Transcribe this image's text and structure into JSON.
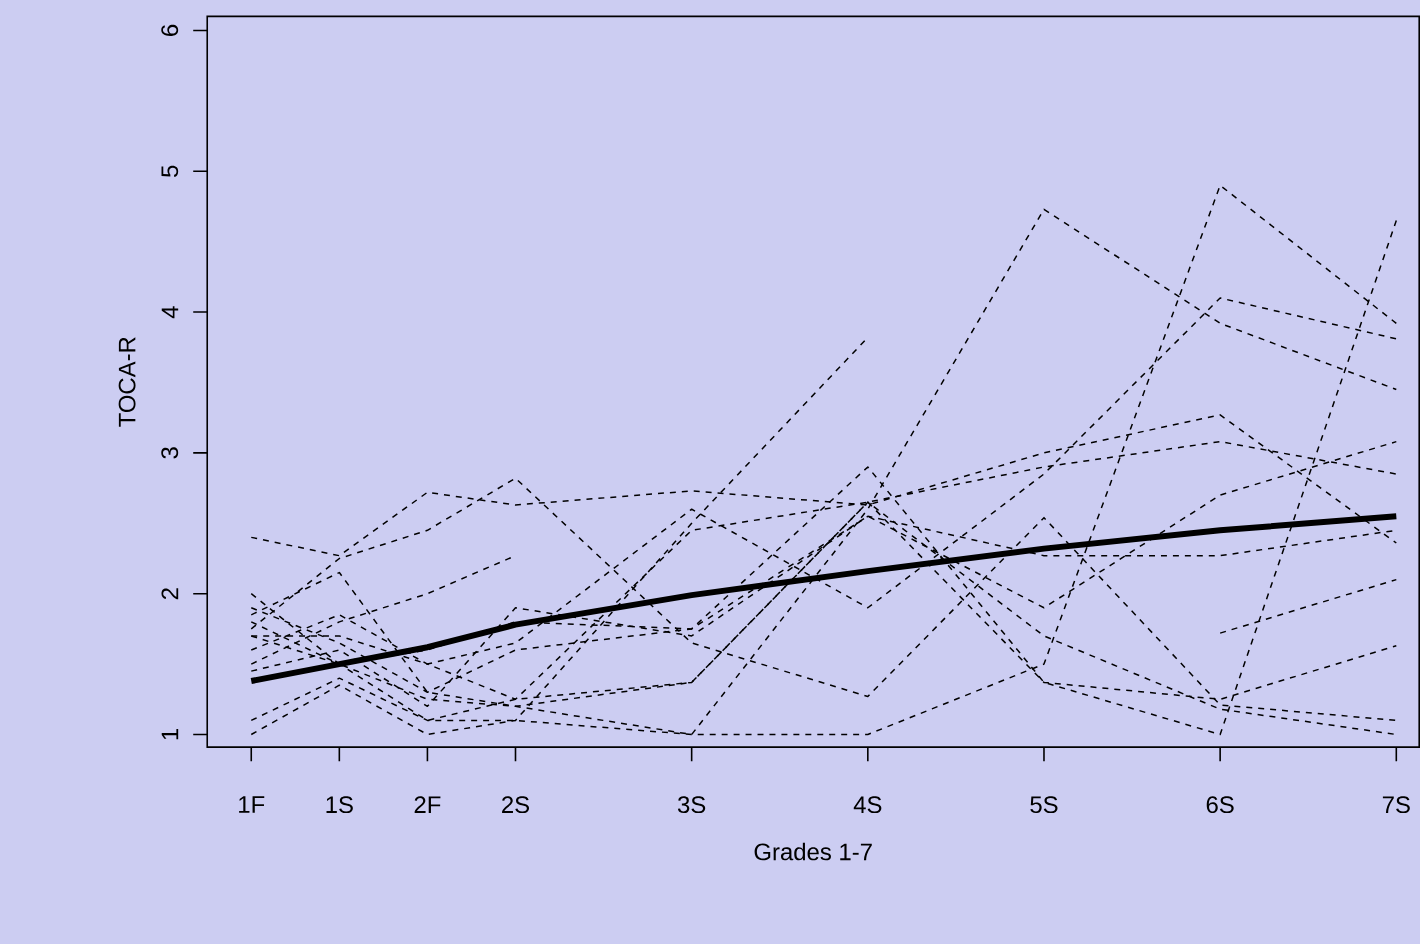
{
  "chart_data": {
    "type": "line",
    "xlabel": "Grades 1-7",
    "ylabel": "TOCA-R",
    "x": [
      1,
      1.5,
      2,
      2.5,
      3.5,
      4.5,
      5.5,
      6.5,
      7.5
    ],
    "xlim": [
      0.75,
      7.63
    ],
    "ylim": [
      0.91,
      6.1
    ],
    "xticks": [
      {
        "value": 1,
        "label": "1F"
      },
      {
        "value": 1.5,
        "label": "1S"
      },
      {
        "value": 2,
        "label": "2F"
      },
      {
        "value": 2.5,
        "label": "2S"
      },
      {
        "value": 3.5,
        "label": "3S"
      },
      {
        "value": 4.5,
        "label": "4S"
      },
      {
        "value": 5.5,
        "label": "5S"
      },
      {
        "value": 6.5,
        "label": "6S"
      },
      {
        "value": 7.5,
        "label": "7S"
      }
    ],
    "yticks": [
      1,
      2,
      3,
      4,
      5,
      6
    ],
    "series": [
      {
        "color": "#000000",
        "line_style": "dashed",
        "values": [
          2.4,
          2.27,
          2.72,
          2.63,
          2.73,
          2.63,
          3.0,
          3.27,
          2.36
        ]
      },
      {
        "color": "#000000",
        "line_style": "dashed",
        "values": [
          1.75,
          2.25,
          2.45,
          2.82,
          1.65,
          1.27,
          2.54,
          1.21,
          1.1
        ]
      },
      {
        "color": "#000000",
        "line_style": "dashed",
        "values": [
          1.5,
          1.8,
          2.0,
          2.27,
          null,
          null,
          null,
          null,
          null
        ]
      },
      {
        "color": "#000000",
        "line_style": "dashed",
        "values": [
          1.0,
          1.35,
          1.0,
          1.1,
          2.5,
          3.82,
          null,
          null,
          null
        ]
      },
      {
        "color": "#000000",
        "line_style": "dashed",
        "values": [
          1.85,
          2.15,
          1.3,
          1.2,
          1.0,
          2.6,
          4.73,
          3.92,
          3.45
        ]
      },
      {
        "color": "#000000",
        "line_style": "dashed",
        "values": [
          1.1,
          1.4,
          1.1,
          1.1,
          1.0,
          1.0,
          1.5,
          4.9,
          3.92
        ]
      },
      {
        "color": "#000000",
        "line_style": "dashed",
        "values": [
          1.7,
          1.7,
          1.5,
          1.65,
          2.6,
          1.9,
          2.85,
          4.1,
          3.81
        ]
      },
      {
        "color": "#000000",
        "line_style": "dashed",
        "values": [
          2.0,
          1.5,
          1.6,
          1.8,
          1.75,
          2.9,
          1.37,
          1.0,
          4.65
        ]
      },
      {
        "color": "#000000",
        "line_style": "dashed",
        "values": [
          1.45,
          1.6,
          1.2,
          1.9,
          1.7,
          2.55,
          2.27,
          2.27,
          2.45
        ]
      },
      {
        "color": "#000000",
        "line_style": "dashed",
        "values": [
          1.8,
          1.5,
          1.1,
          1.25,
          1.37,
          2.65,
          1.7,
          1.18,
          1.0
        ]
      },
      {
        "color": "#000000",
        "line_style": "dashed",
        "values": [
          1.6,
          1.85,
          1.5,
          1.25,
          2.45,
          2.65,
          2.9,
          3.08,
          2.85
        ]
      },
      {
        "color": "#000000",
        "line_style": "dashed",
        "values": [
          1.9,
          1.65,
          1.3,
          1.6,
          1.75,
          2.55,
          1.9,
          2.7,
          3.08
        ]
      },
      {
        "color": "#000000",
        "line_style": "dashed",
        "values": [
          null,
          null,
          null,
          null,
          null,
          null,
          null,
          1.72,
          2.1
        ]
      },
      {
        "color": "#000000",
        "line_style": "dashed",
        "values": [
          1.7,
          1.5,
          1.25,
          1.2,
          1.37,
          2.65,
          1.37,
          1.25,
          1.63
        ]
      },
      {
        "color": "#000000",
        "line_style": "solid",
        "values": [
          1.38,
          1.5,
          1.62,
          1.78,
          1.99,
          2.16,
          2.32,
          2.45,
          2.55
        ]
      }
    ]
  }
}
